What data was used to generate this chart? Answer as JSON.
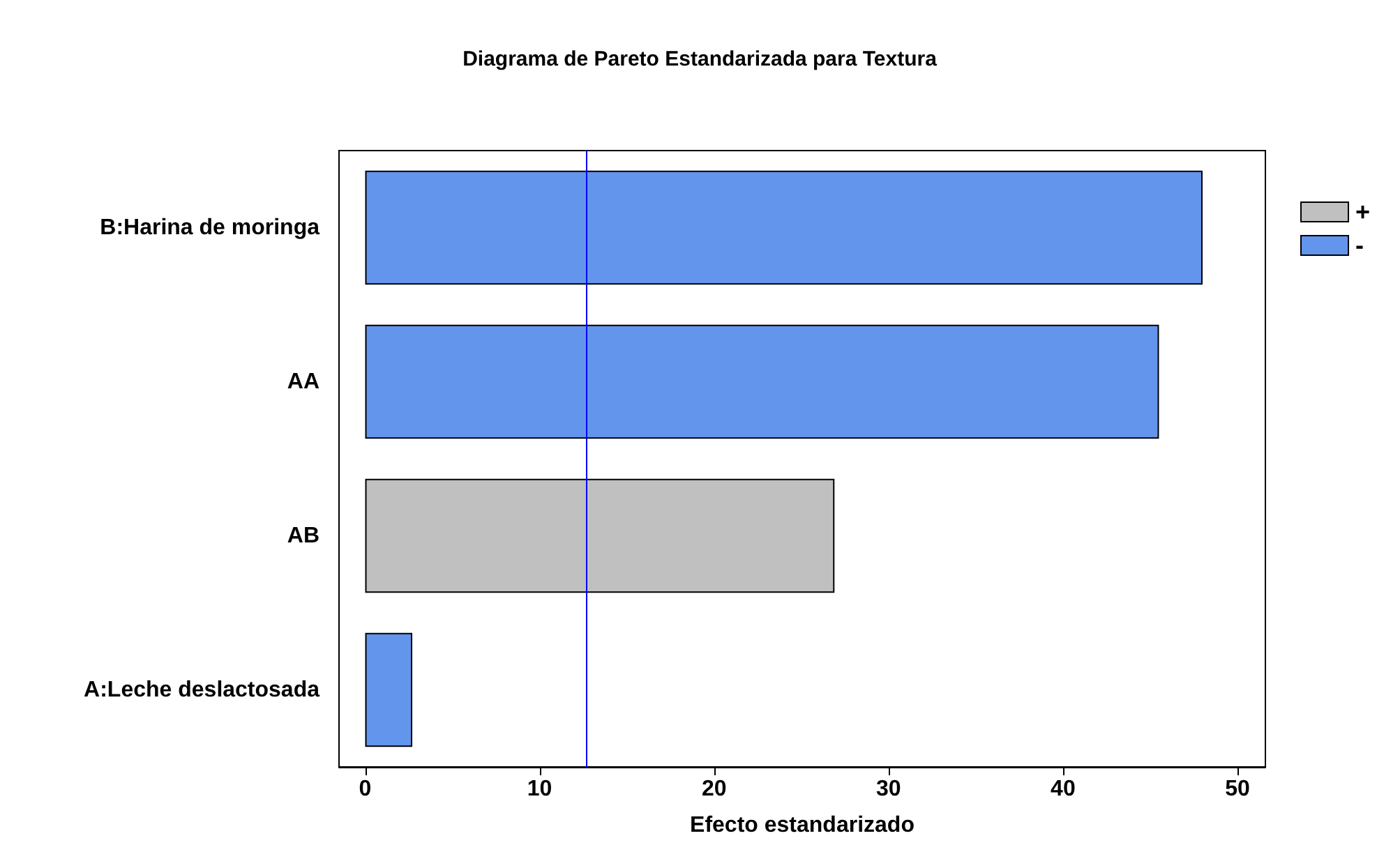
{
  "chart_data": {
    "type": "bar",
    "orientation": "horizontal",
    "stacked": true,
    "title": "Diagrama de Pareto Estandarizada para Textura",
    "xlabel": "Efecto estandarizado",
    "categories": [
      "B:Harina de moringa",
      "AA",
      "AB",
      "A:Leche deslactosada"
    ],
    "series": [
      {
        "name": "+",
        "color": "#c0c0c0",
        "values": [
          null,
          null,
          26.9,
          null
        ]
      },
      {
        "name": "-",
        "color": "#6495ed",
        "values": [
          48.0,
          45.5,
          null,
          2.7
        ]
      }
    ],
    "xlim": [
      -1.5,
      51.6
    ],
    "xticks": [
      0,
      10,
      20,
      30,
      40,
      50
    ],
    "ref_lines": [
      {
        "axis": "x",
        "value": 12.7,
        "color": "#0000ff"
      }
    ],
    "grid": false,
    "legend": "top right"
  }
}
